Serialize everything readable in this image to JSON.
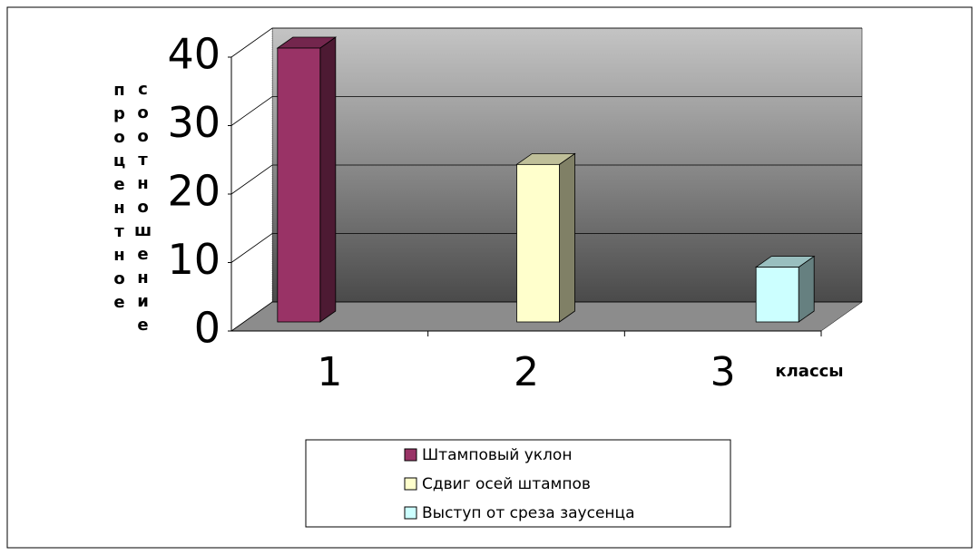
{
  "chart_data": {
    "type": "bar3d",
    "y_label": "процентное соотношение",
    "x_label": "классы",
    "categories": [
      "1",
      "2",
      "3"
    ],
    "series": [
      {
        "name": "Штамповый уклон",
        "color": "#993366",
        "values": [
          40,
          null,
          null
        ]
      },
      {
        "name": "Сдвиг осей штампов",
        "color": "#ffffcc",
        "values": [
          null,
          23,
          null
        ]
      },
      {
        "name": "Выступ от среза заусенца",
        "color": "#ccffff",
        "values": [
          null,
          null,
          8
        ]
      }
    ],
    "ylim": [
      0,
      40
    ],
    "yticks": [
      0,
      10,
      20,
      30,
      40
    ],
    "grid": true
  }
}
